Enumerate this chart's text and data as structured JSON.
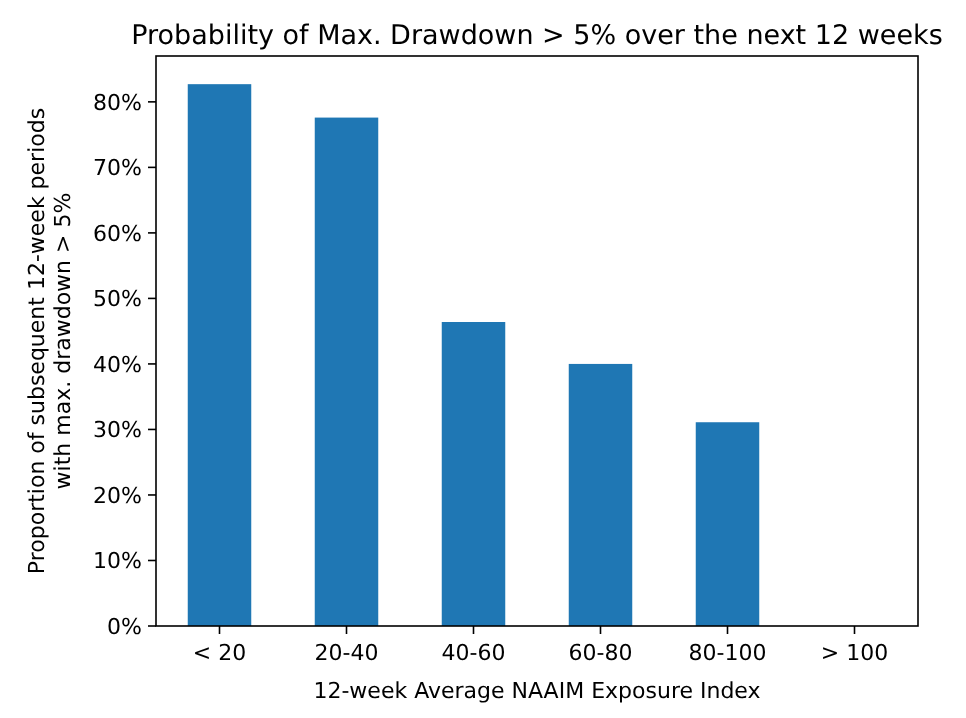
{
  "chart_data": {
    "type": "bar",
    "title": "Probability of Max. Drawdown > 5% over the next 12 weeks",
    "xlabel": "12-week Average NAAIM Exposure Index",
    "ylabel": "Proportion of subsequent 12-week periods\nwith max. drawdown > 5%",
    "categories": [
      "< 20",
      "20-40",
      "40-60",
      "60-80",
      "80-100",
      "> 100"
    ],
    "values": [
      82.7,
      77.6,
      46.4,
      40.0,
      31.1,
      0
    ],
    "color": "#1f77b4",
    "ylim": [
      0,
      87
    ],
    "yticks": [
      {
        "value": 0,
        "label": "0%"
      },
      {
        "value": 10,
        "label": "10%"
      },
      {
        "value": 20,
        "label": "20%"
      },
      {
        "value": 30,
        "label": "30%"
      },
      {
        "value": 40,
        "label": "40%"
      },
      {
        "value": 50,
        "label": "50%"
      },
      {
        "value": 60,
        "label": "60%"
      },
      {
        "value": 70,
        "label": "70%"
      },
      {
        "value": 80,
        "label": "80%"
      }
    ],
    "grid": false
  }
}
